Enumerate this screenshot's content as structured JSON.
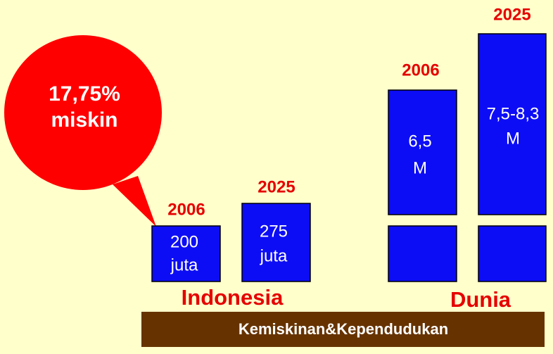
{
  "callout": {
    "lines": [
      "17,75%",
      "miskin"
    ]
  },
  "groups": [
    {
      "label": "Indonesia",
      "bars": [
        {
          "year": "2006",
          "lines": [
            "200",
            "juta"
          ]
        },
        {
          "year": "2025",
          "lines": [
            "275",
            "juta"
          ]
        }
      ]
    },
    {
      "label": "Dunia",
      "bars": [
        {
          "year": "2006",
          "lines": [
            "6,5",
            "M"
          ]
        },
        {
          "year": "2025",
          "lines": [
            "7,5-8,3",
            "M"
          ]
        }
      ]
    }
  ],
  "footer": "Kemiskinan&Kependudukan"
}
